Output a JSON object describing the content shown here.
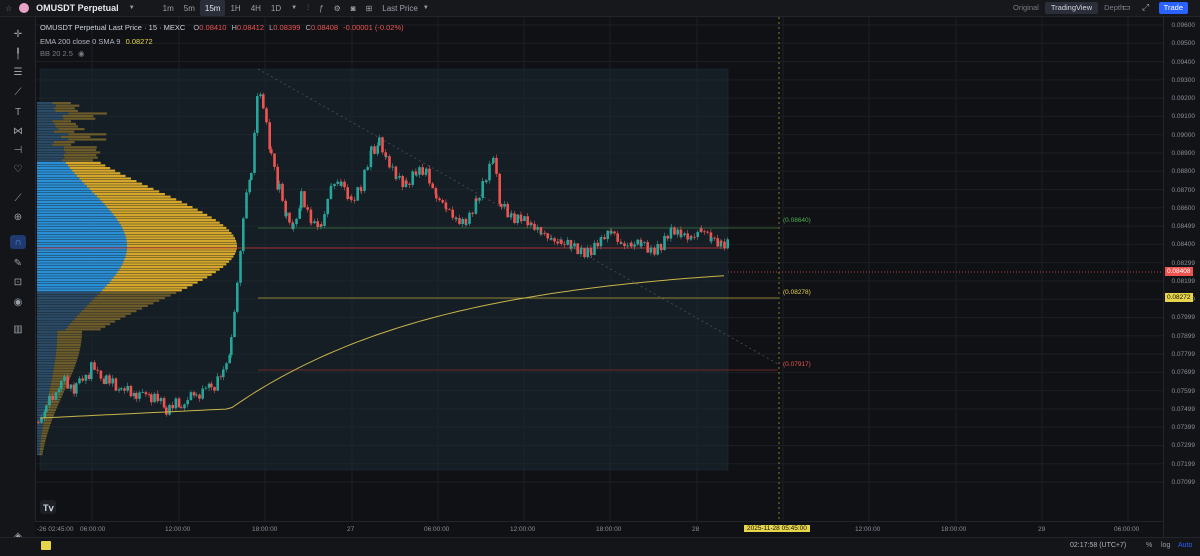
{
  "toolbar": {
    "symbol": "OMUSDT Perpetual",
    "timeframes": [
      "1m",
      "5m",
      "15m",
      "1H",
      "4H",
      "1D"
    ],
    "active_timeframe": "15m",
    "price_source": "Last Price",
    "views": [
      "Original",
      "TradingView",
      "Depth"
    ],
    "active_view": "TradingView",
    "trade_label": "Trade"
  },
  "legend": {
    "title": "OMUSDT Perpetual Last Price · 15 · MEXC",
    "o_label": "O",
    "o": "0.08410",
    "h_label": "H",
    "h": "0.08412",
    "l_label": "L",
    "l": "0.08399",
    "c_label": "C",
    "c": "0.08408",
    "change": "-0.00001 (-0.02%)",
    "ema_label": "EMA 200 close 0 SMA 9",
    "ema_value": "0.08272",
    "bb_label": "BB 20 2.5"
  },
  "price_axis": {
    "labels": [
      "0.09600",
      "0.09500",
      "0.09400",
      "0.09300",
      "0.09200",
      "0.09100",
      "0.09000",
      "0.08900",
      "0.08800",
      "0.08700",
      "0.08600",
      "0.08499",
      "0.08400",
      "0.08299",
      "0.08199",
      "0.08099",
      "0.07999",
      "0.07899",
      "0.07799",
      "0.07699",
      "0.07599",
      "0.07499",
      "0.07399",
      "0.07299",
      "0.07199",
      "0.07099"
    ],
    "last_price": "0.08408",
    "ema_price": "0.08272"
  },
  "time_axis": {
    "labels": [
      {
        "text": "-26 02:45:00"
      },
      {
        "text": "06:00:00"
      },
      {
        "text": "12:00:00"
      },
      {
        "text": "18:00:00"
      },
      {
        "text": "27"
      },
      {
        "text": "06:00:00"
      },
      {
        "text": "12:00:00"
      },
      {
        "text": "18:00:00"
      },
      {
        "text": "28"
      },
      {
        "text": "2025-11-28 05:45:00"
      },
      {
        "text": "12:00:00"
      },
      {
        "text": "18:00:00"
      },
      {
        "text": "29"
      },
      {
        "text": "06:00:00"
      }
    ]
  },
  "levels": {
    "upper": "(0.08640)",
    "mid": "(0.08278)",
    "lower": "(0.07917)"
  },
  "statusbar": {
    "time": "02:17:58 (UTC+7)",
    "percent": "%",
    "log": "log",
    "auto": "Auto"
  },
  "colors": {
    "up": "#26a69a",
    "down": "#ef5350",
    "ema": "#c8b44a",
    "vp_buy": "#2b8fd6",
    "vp_sell": "#d4a72c",
    "accent": "#2962ff"
  }
}
